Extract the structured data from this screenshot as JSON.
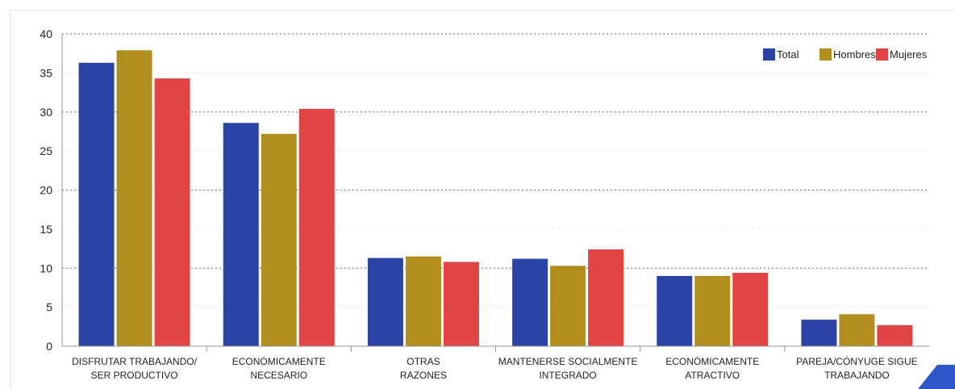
{
  "chart_data": {
    "type": "bar",
    "title": "",
    "xlabel": "",
    "ylabel": "",
    "ylim": [
      0,
      40
    ],
    "yticks": [
      0,
      5,
      10,
      15,
      20,
      25,
      30,
      35,
      40
    ],
    "grid": "horizontal-dotted",
    "legend_position": "top-right",
    "categories": [
      [
        "DISFRUTAR TRABAJANDO/",
        "SER PRODUCTIVO"
      ],
      [
        "ECONÓMICAMENTE",
        "NECESARIO"
      ],
      [
        "OTRAS",
        "RAZONES"
      ],
      [
        "MANTENERSE SOCIALMENTE",
        "INTEGRADO"
      ],
      [
        "ECONÓMICAMENTE",
        "ATRACTIVO"
      ],
      [
        "PAREJA/CÓNYUGE SIGUE",
        "TRABAJANDO"
      ]
    ],
    "series": [
      {
        "name": "Total",
        "color": "#2a43a6",
        "values": [
          36.3,
          28.6,
          11.3,
          11.2,
          9.0,
          3.4
        ]
      },
      {
        "name": "Hombres",
        "color": "#b08f1e",
        "values": [
          37.9,
          27.2,
          11.5,
          10.3,
          9.0,
          4.1
        ]
      },
      {
        "name": "Mujeres",
        "color": "#e04444",
        "values": [
          34.3,
          30.4,
          10.8,
          12.4,
          9.4,
          2.7
        ]
      }
    ]
  },
  "decoration": {
    "corner_accent_color": "#2f56c9"
  }
}
